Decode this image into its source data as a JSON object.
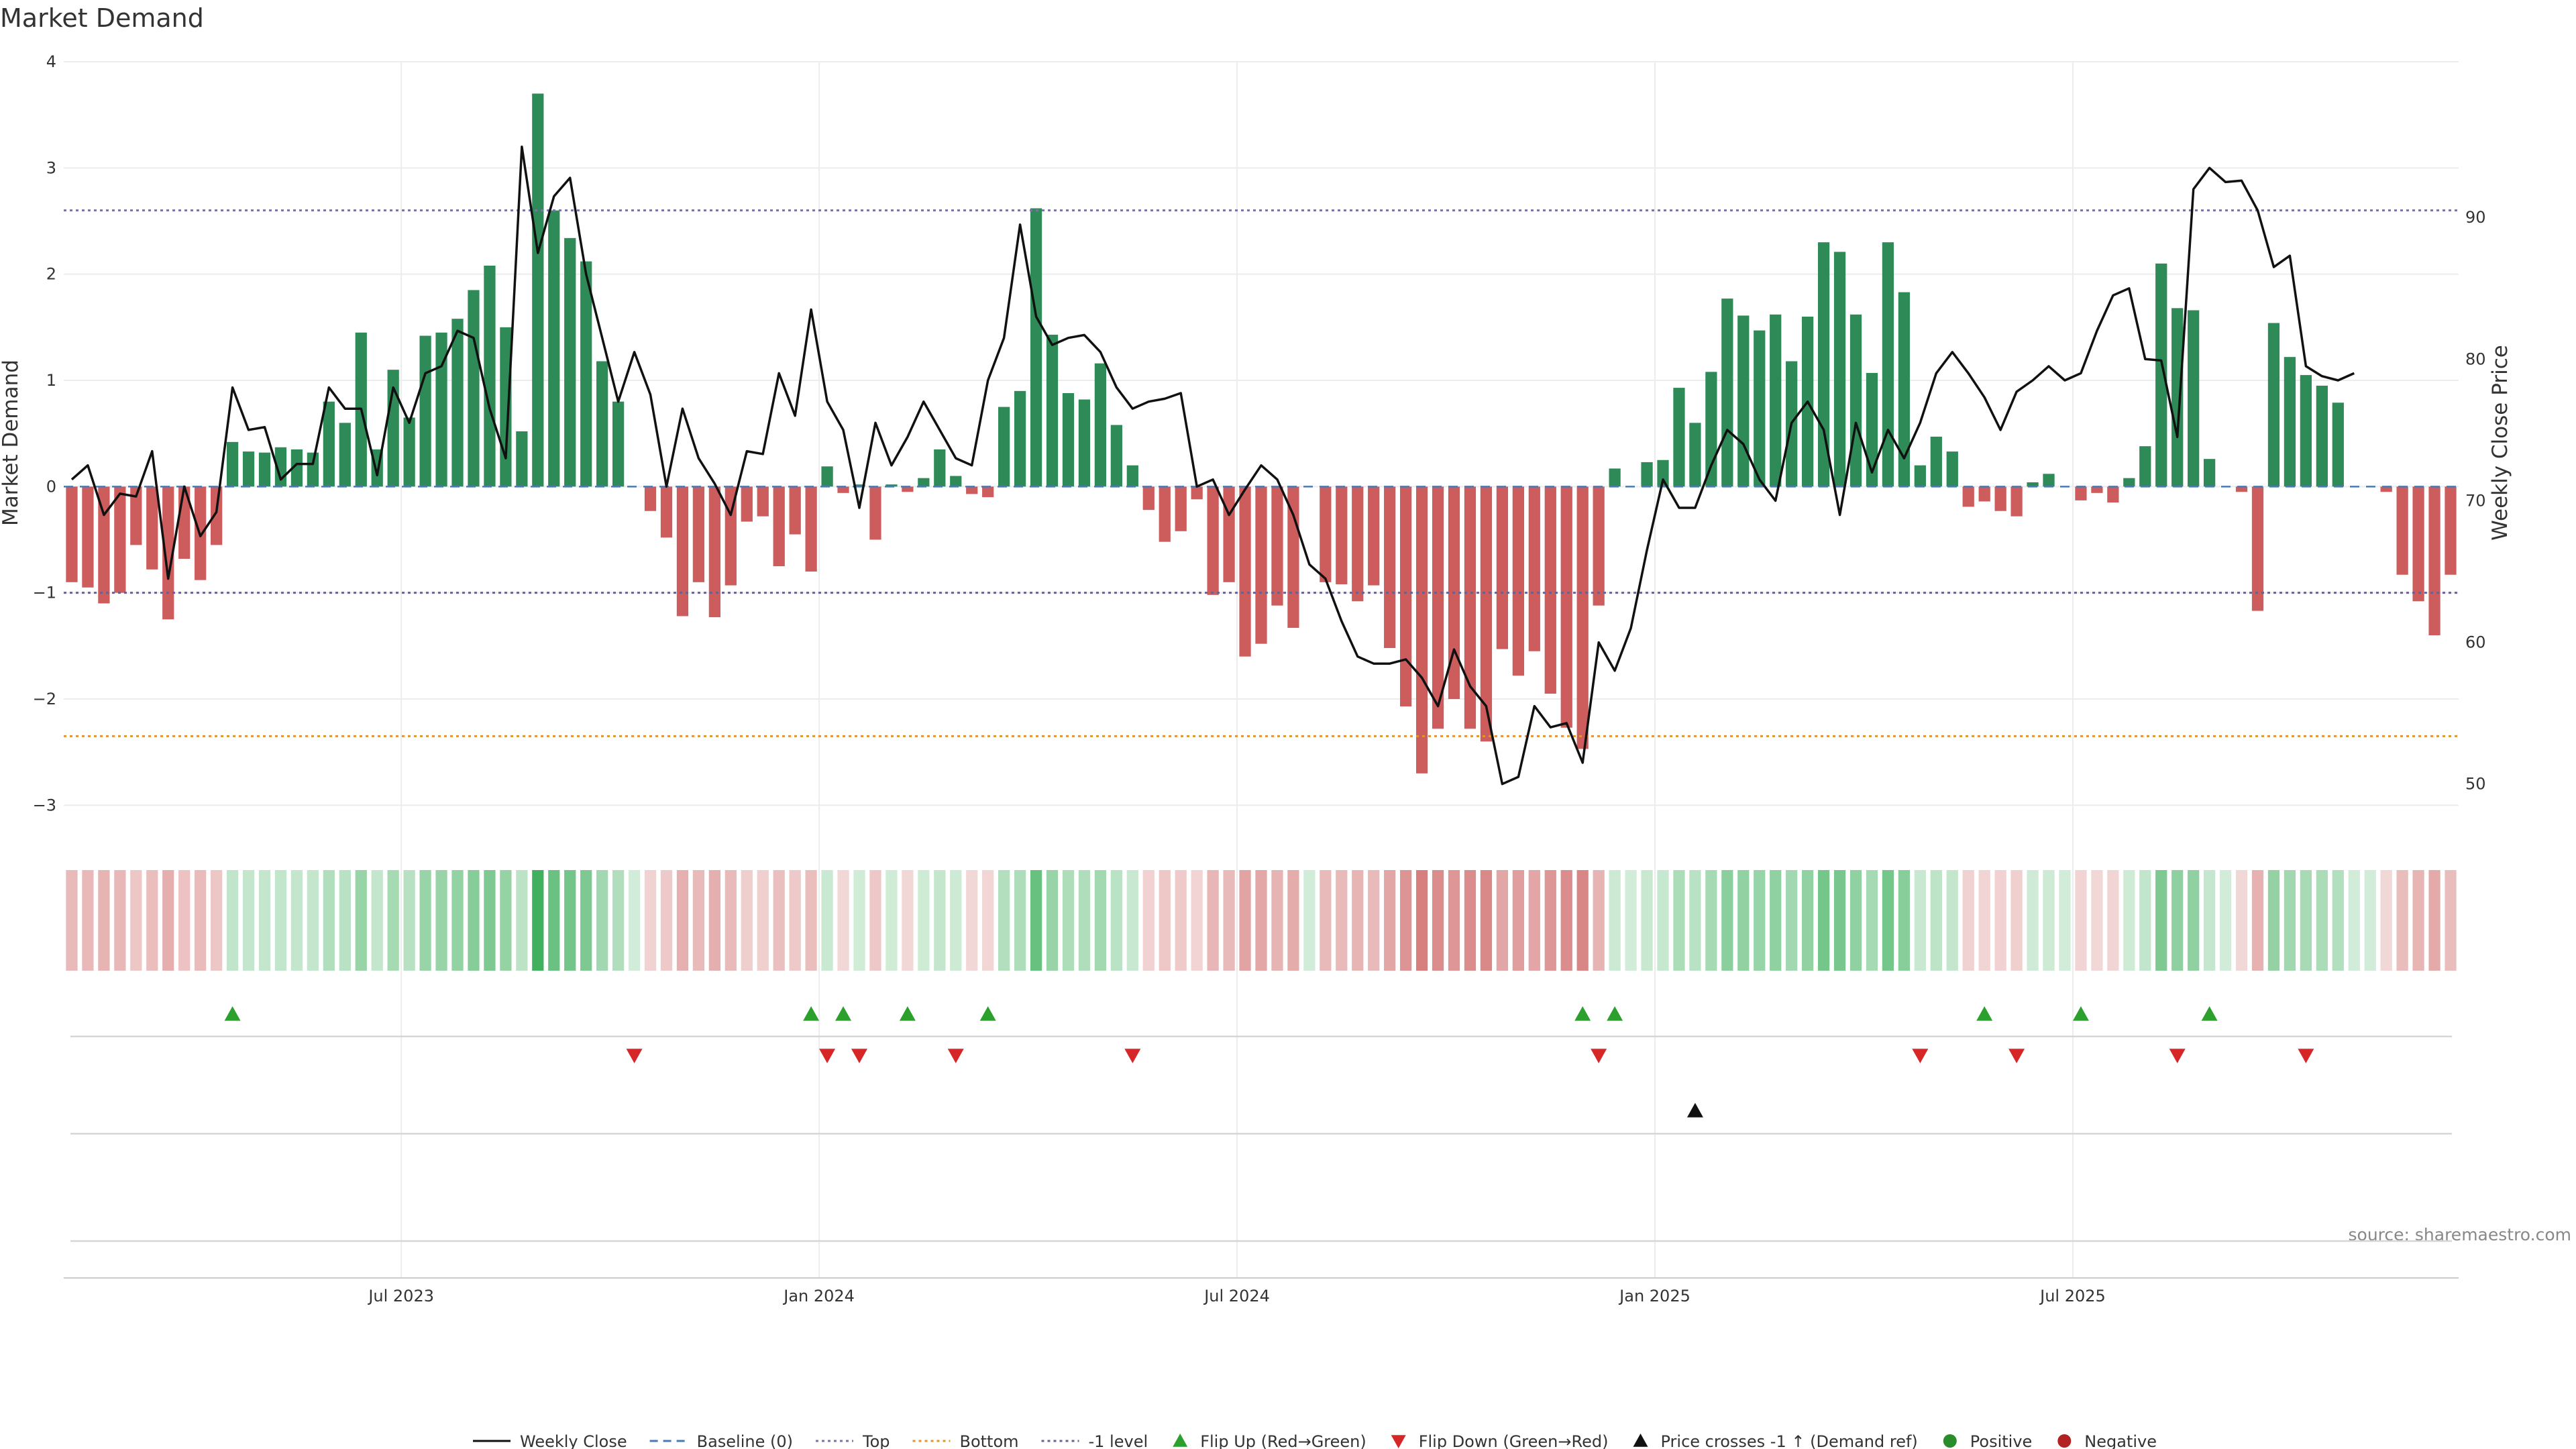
{
  "chart_data": {
    "type": "bar",
    "title": "Market Demand",
    "ylabel": "Market Demand",
    "y2label": "Weekly Close Price",
    "ylim": [
      -3.2,
      4.0
    ],
    "y2lim": [
      47,
      101
    ],
    "y_ticks": [
      4,
      3,
      2,
      1,
      0,
      -1,
      -2,
      -3
    ],
    "y_tick_labels": [
      "4",
      "3",
      "2",
      "1",
      "0",
      "−1",
      "−2",
      "−3"
    ],
    "y2_ticks": [
      90,
      80,
      70,
      60,
      50
    ],
    "x_ticks": [
      "Jul 2023",
      "Jan 2024",
      "Jul 2024",
      "Jan 2025",
      "Jul 2025"
    ],
    "x_tick_positions": [
      21,
      47,
      73,
      99,
      125
    ],
    "grid": true,
    "reference_lines": [
      {
        "name": "Baseline (0)",
        "value": 0,
        "color": "#4a7ab5",
        "style": "dashed"
      },
      {
        "name": "Top",
        "value": 2.6,
        "color": "#7b73a8",
        "style": "dotted"
      },
      {
        "name": "Bottom",
        "value": -2.35,
        "color": "#e0962b",
        "style": "dotted"
      },
      {
        "name": "-1 level",
        "value": -1.0,
        "color": "#6b6190",
        "style": "dotted"
      }
    ],
    "colors": {
      "positive": "#2e8b57",
      "negative": "#cd5c5c",
      "price": "#111111",
      "flip_up": "#2ca02c",
      "flip_down": "#d62728",
      "cross": "#111111",
      "positive_dot": "#2a8c2a",
      "negative_dot": "#b22222"
    },
    "series": [
      {
        "name": "Market Demand",
        "kind": "bar",
        "values": [
          -0.9,
          -0.95,
          -1.1,
          -1.0,
          -0.55,
          -0.78,
          -1.25,
          -0.68,
          -0.88,
          -0.55,
          0.42,
          0.33,
          0.32,
          0.37,
          0.35,
          0.32,
          0.8,
          0.6,
          1.45,
          0.35,
          1.1,
          0.65,
          1.42,
          1.45,
          1.58,
          1.85,
          2.08,
          1.5,
          0.52,
          3.7,
          2.6,
          2.34,
          2.12,
          1.18,
          0.8,
          0.0,
          -0.23,
          -0.48,
          -1.22,
          -0.9,
          -1.23,
          -0.93,
          -0.33,
          -0.28,
          -0.75,
          -0.45,
          -0.8,
          0.19,
          -0.06,
          0.02,
          -0.5,
          0.02,
          -0.05,
          0.08,
          0.35,
          0.1,
          -0.07,
          -0.1,
          0.75,
          0.9,
          2.62,
          1.43,
          0.88,
          0.82,
          1.16,
          0.58,
          0.2,
          -0.22,
          -0.52,
          -0.42,
          -0.12,
          -1.02,
          -0.9,
          -1.6,
          -1.48,
          -1.12,
          -1.33,
          0.0,
          -0.9,
          -0.92,
          -1.08,
          -0.93,
          -1.52,
          -2.07,
          -2.7,
          -2.28,
          -2.0,
          -2.28,
          -2.4,
          -1.53,
          -1.78,
          -1.55,
          -1.95,
          -2.27,
          -2.47,
          -1.12,
          0.17,
          0.0,
          0.23,
          0.25,
          0.93,
          0.6,
          1.08,
          1.77,
          1.61,
          1.47,
          1.62,
          1.18,
          1.6,
          2.3,
          2.21,
          1.62,
          1.07,
          2.3,
          1.83,
          0.2,
          0.47,
          0.33,
          -0.19,
          -0.14,
          -0.23,
          -0.28,
          0.04,
          0.12,
          0.0,
          -0.13,
          -0.06,
          -0.15,
          0.08,
          0.38,
          2.1,
          1.68,
          1.66,
          0.26,
          0.0,
          -0.05,
          -1.17,
          1.54,
          1.22,
          1.05,
          0.95,
          0.79,
          0.0,
          0.0,
          -0.05,
          -0.83,
          -1.08,
          -1.4,
          -0.83
        ]
      },
      {
        "name": "Weekly Close",
        "kind": "line",
        "values": [
          71.5,
          72.5,
          69.0,
          70.5,
          70.3,
          73.5,
          64.5,
          71.0,
          67.5,
          69.2,
          78.0,
          75.0,
          75.2,
          71.5,
          72.6,
          72.6,
          78.0,
          76.5,
          76.5,
          71.8,
          78.0,
          75.5,
          79.0,
          79.5,
          82.0,
          81.5,
          76.5,
          73.0,
          95.0,
          87.5,
          91.5,
          92.8,
          86.0,
          81.5,
          77.0,
          80.5,
          77.5,
          71.0,
          76.5,
          73.0,
          71.2,
          69.0,
          73.5,
          73.3,
          79.0,
          76.0,
          83.5,
          77.0,
          75.0,
          69.5,
          75.5,
          72.5,
          74.5,
          77.0,
          75.0,
          73.0,
          72.5,
          78.5,
          81.5,
          89.5,
          83.0,
          81.0,
          81.5,
          81.7,
          80.5,
          78.0,
          76.5,
          77.0,
          77.2,
          77.6,
          71.0,
          71.5,
          69.0,
          70.8,
          72.5,
          71.5,
          69.0,
          65.5,
          64.5,
          61.5,
          59.0,
          58.5,
          58.5,
          58.8,
          57.5,
          55.5,
          59.5,
          56.9,
          55.5,
          50.0,
          50.5,
          55.5,
          54.0,
          54.3,
          51.5,
          60.0,
          58.0,
          61.0,
          66.5,
          71.5,
          69.5,
          69.5,
          72.5,
          75.0,
          74.0,
          71.5,
          70.0,
          75.5,
          77.0,
          75.0,
          69.0,
          75.5,
          72.0,
          75.0,
          73.0,
          75.5,
          79.0,
          80.5,
          79.0,
          77.3,
          75.0,
          77.7,
          78.5,
          79.5,
          78.5,
          79.0,
          82.0,
          84.5,
          85.0,
          80.0,
          79.9,
          74.5,
          92.0,
          93.5,
          92.5,
          92.6,
          90.5,
          86.5,
          87.3,
          79.5,
          78.8,
          78.5,
          79.0
        ]
      },
      {
        "name": "Flip Up (Red→Green)",
        "kind": "marker",
        "x": [
          10,
          46,
          48,
          52,
          57,
          94,
          96,
          119,
          125,
          133
        ]
      },
      {
        "name": "Flip Down (Green→Red)",
        "kind": "marker",
        "x": [
          35,
          47,
          49,
          55,
          66,
          95,
          115,
          121,
          131,
          139
        ]
      },
      {
        "name": "Price crosses -1 ↑ (Demand ref)",
        "kind": "marker",
        "x": [
          101
        ]
      }
    ],
    "legend_position": "bottom",
    "legend": [
      {
        "label": "Weekly Close",
        "marker": "solid-line",
        "color": "#111111"
      },
      {
        "label": "Baseline (0)",
        "marker": "dashed-line",
        "color": "#4a7ab5"
      },
      {
        "label": "Top",
        "marker": "dotted-line",
        "color": "#7b73a8"
      },
      {
        "label": "Bottom",
        "marker": "dotted-line",
        "color": "#e0962b"
      },
      {
        "label": "-1 level",
        "marker": "dotted-line",
        "color": "#6b6190"
      },
      {
        "label": "Flip Up (Red→Green)",
        "marker": "triangle-up",
        "color": "#2ca02c"
      },
      {
        "label": "Flip Down (Green→Red)",
        "marker": "triangle-down",
        "color": "#d62728"
      },
      {
        "label": "Price crosses -1 ↑ (Demand ref)",
        "marker": "triangle-up",
        "color": "#111111"
      },
      {
        "label": "Positive",
        "marker": "dot",
        "color": "#2a8c2a"
      },
      {
        "label": "Negative",
        "marker": "dot",
        "color": "#b22222"
      }
    ],
    "source": "source: sharemaestro.com"
  }
}
